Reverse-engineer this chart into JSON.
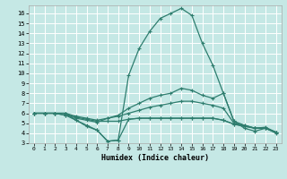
{
  "xlabel": "Humidex (Indice chaleur)",
  "xlim": [
    -0.5,
    23.5
  ],
  "ylim": [
    3,
    16.8
  ],
  "yticks": [
    3,
    4,
    5,
    6,
    7,
    8,
    9,
    10,
    11,
    12,
    13,
    14,
    15,
    16
  ],
  "xticks": [
    0,
    1,
    2,
    3,
    4,
    5,
    6,
    7,
    8,
    9,
    10,
    11,
    12,
    13,
    14,
    15,
    16,
    17,
    18,
    19,
    20,
    21,
    22,
    23
  ],
  "bg_color": "#c5e8e5",
  "line_color": "#2e7d6e",
  "grid_color": "#ffffff",
  "curve_max": [
    6.0,
    6.0,
    6.0,
    6.0,
    5.3,
    4.8,
    4.3,
    3.2,
    3.3,
    9.8,
    12.5,
    14.2,
    15.5,
    16.0,
    16.5,
    15.8,
    13.0,
    10.8,
    8.0,
    5.2,
    4.5,
    4.2,
    4.5,
    4.0
  ],
  "curve_upper": [
    6.0,
    6.0,
    6.0,
    6.0,
    5.5,
    5.3,
    5.1,
    5.5,
    5.8,
    6.5,
    7.0,
    7.5,
    7.8,
    8.0,
    8.5,
    8.3,
    7.8,
    7.5,
    8.0,
    5.2,
    4.8,
    4.5,
    4.6,
    4.1
  ],
  "curve_mid": [
    6.0,
    6.0,
    6.0,
    6.0,
    5.7,
    5.5,
    5.3,
    5.5,
    5.7,
    6.0,
    6.3,
    6.6,
    6.8,
    7.0,
    7.2,
    7.2,
    7.0,
    6.8,
    6.5,
    5.0,
    4.8,
    4.5,
    4.5,
    4.1
  ],
  "curve_lower": [
    6.0,
    6.0,
    6.0,
    5.8,
    5.6,
    5.4,
    5.2,
    5.2,
    5.2,
    5.4,
    5.5,
    5.5,
    5.5,
    5.5,
    5.5,
    5.5,
    5.5,
    5.5,
    5.3,
    4.9,
    4.7,
    4.5,
    4.5,
    4.1
  ],
  "curve_min": [
    6.0,
    6.0,
    6.0,
    5.8,
    5.3,
    4.7,
    4.3,
    3.2,
    3.3,
    5.4,
    5.5,
    5.5,
    5.5,
    5.5,
    5.5,
    5.5,
    5.5,
    5.5,
    5.3,
    4.9,
    4.7,
    4.5,
    4.5,
    4.1
  ]
}
